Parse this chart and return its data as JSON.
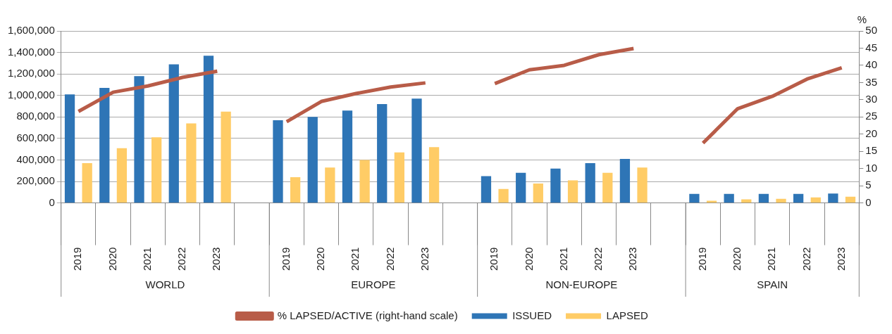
{
  "chart_data": {
    "type": "bar",
    "categories": [
      "2019",
      "2020",
      "2021",
      "2022",
      "2023",
      null,
      "2019",
      "2020",
      "2021",
      "2022",
      "2023",
      null,
      "2019",
      "2020",
      "2021",
      "2022",
      "2023",
      null,
      "2019",
      "2020",
      "2021",
      "2022",
      "2023"
    ],
    "series": [
      {
        "name": "ISSUED",
        "color": "#2e75b6",
        "values": [
          1010000,
          1070000,
          1180000,
          1290000,
          1370000,
          null,
          770000,
          800000,
          860000,
          920000,
          970000,
          null,
          250000,
          280000,
          320000,
          370000,
          410000,
          null,
          84000,
          84000,
          85000,
          85000,
          88000
        ]
      },
      {
        "name": "LAPSED",
        "color": "#ffcc66",
        "values": [
          370000,
          510000,
          610000,
          740000,
          850000,
          null,
          240000,
          330000,
          400000,
          470000,
          520000,
          null,
          130000,
          180000,
          210000,
          280000,
          330000,
          null,
          21000,
          34000,
          39000,
          51000,
          58000
        ]
      },
      {
        "name": "% LAPSED/ACTIVE (right-hand scale)",
        "type": "line",
        "axis": "y2",
        "color": "#b85c48",
        "values": [
          26.6,
          32.2,
          34.0,
          36.5,
          38.3,
          null,
          23.6,
          29.5,
          31.8,
          33.7,
          34.9,
          null,
          34.7,
          38.7,
          40.0,
          43.1,
          44.9,
          null,
          17.4,
          27.4,
          31.0,
          36.0,
          39.3
        ]
      }
    ],
    "y2label": "%",
    "ylim": [
      0,
      1600000
    ],
    "yticks": [
      {
        "value": 0,
        "label": "0"
      },
      {
        "value": 200000,
        "label": "200,000"
      },
      {
        "value": 400000,
        "label": "400,000"
      },
      {
        "value": 600000,
        "label": "600,000"
      },
      {
        "value": 800000,
        "label": "800,000"
      },
      {
        "value": 1000000,
        "label": "1,000,000"
      },
      {
        "value": 1200000,
        "label": "1,200,000"
      },
      {
        "value": 1400000,
        "label": "1,400,000"
      },
      {
        "value": 1600000,
        "label": "1,600,000"
      }
    ],
    "y2lim": [
      0,
      50
    ],
    "y2ticks": [
      0,
      5,
      10,
      15,
      20,
      25,
      30,
      35,
      40,
      45,
      50
    ],
    "annotations": [
      "WORLD",
      "EUROPE",
      "NON-EUROPE",
      "SPAIN"
    ],
    "grid": "y",
    "legend": "bottom"
  }
}
